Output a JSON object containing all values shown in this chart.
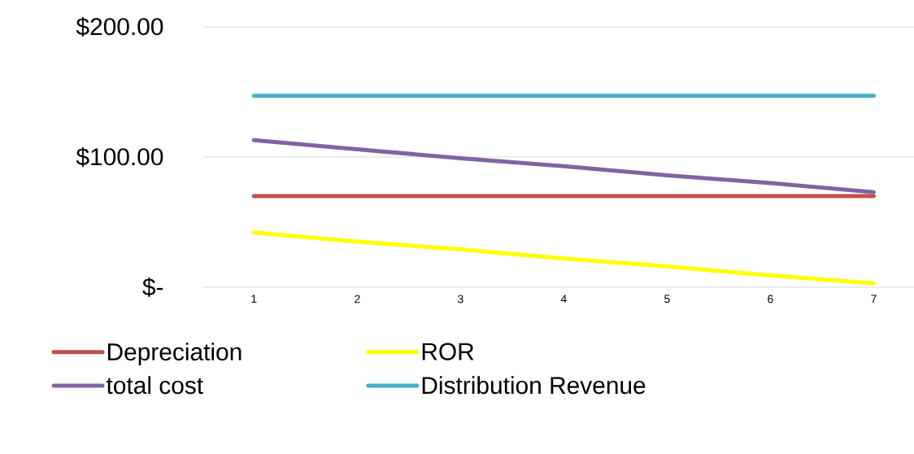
{
  "chart_data": {
    "type": "line",
    "categories": [
      "1",
      "2",
      "3",
      "4",
      "5",
      "6",
      "7"
    ],
    "series": [
      {
        "name": "Depreciation",
        "color": "#c0504d",
        "values": [
          70,
          70,
          70,
          70,
          70,
          70,
          70
        ]
      },
      {
        "name": "ROR",
        "color": "#ffff00",
        "values": [
          42,
          35,
          29,
          22,
          16,
          9,
          3
        ]
      },
      {
        "name": "total cost",
        "color": "#8064a2",
        "values": [
          113,
          106,
          99,
          93,
          86,
          80,
          73
        ]
      },
      {
        "name": "Distribution Revenue",
        "color": "#4bacc6",
        "values": [
          147,
          147,
          147,
          147,
          147,
          147,
          147
        ]
      }
    ],
    "ylim": [
      0,
      200
    ],
    "yticks": [
      {
        "value": 0,
        "label": "$-"
      },
      {
        "value": 100,
        "label": "$100.00"
      },
      {
        "value": 200,
        "label": "$200.00"
      }
    ],
    "grid": "y",
    "legend": "bottom",
    "marker": "none",
    "line_style": "solid"
  }
}
